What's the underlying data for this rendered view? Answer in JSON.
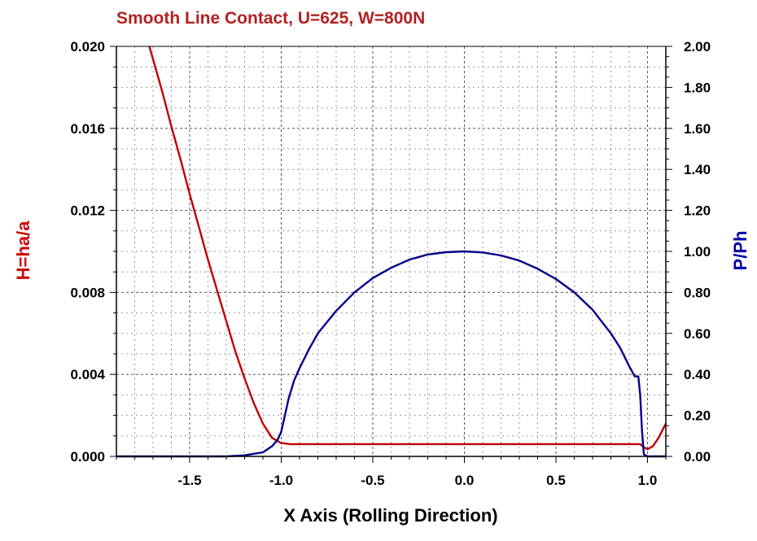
{
  "chart_data": {
    "type": "line",
    "title": "Smooth Line Contact, U=625, W=800N",
    "xlabel": "X Axis (Rolling Direction)",
    "ylabel_left": "H=ha/a",
    "ylabel_right": "P/Ph",
    "xlim": [
      -1.9,
      1.1
    ],
    "ylim_left": [
      0.0,
      0.02
    ],
    "ylim_right": [
      0.0,
      2.0
    ],
    "x_ticks": [
      "-1.5",
      "-1.0",
      "-0.5",
      "0.0",
      "0.5",
      "1.0"
    ],
    "x_tick_values": [
      -1.5,
      -1.0,
      -0.5,
      0.0,
      0.5,
      1.0
    ],
    "y_left_ticks": [
      "0.000",
      "0.004",
      "0.008",
      "0.012",
      "0.016",
      "0.020"
    ],
    "y_left_tick_values": [
      0.0,
      0.004,
      0.008,
      0.012,
      0.016,
      0.02
    ],
    "y_right_ticks": [
      "0.00",
      "0.20",
      "0.40",
      "0.60",
      "0.80",
      "1.00",
      "1.20",
      "1.40",
      "1.60",
      "1.80",
      "2.00"
    ],
    "y_right_tick_values": [
      0.0,
      0.2,
      0.4,
      0.6,
      0.8,
      1.0,
      1.2,
      1.4,
      1.6,
      1.8,
      2.0
    ],
    "grid": true,
    "colors": {
      "film": "#c00000",
      "pressure": "#00008b",
      "title": "#b22222",
      "left_label": "#cc0000",
      "right_label": "#0000aa"
    },
    "series": [
      {
        "axis": "left",
        "color": "#c00000",
        "x": [
          -1.72,
          -1.65,
          -1.6,
          -1.55,
          -1.5,
          -1.45,
          -1.4,
          -1.35,
          -1.3,
          -1.25,
          -1.2,
          -1.15,
          -1.1,
          -1.05,
          -1.0,
          -0.95,
          -0.9,
          -0.5,
          0.0,
          0.5,
          0.9,
          0.96,
          0.98,
          1.0,
          1.03,
          1.06,
          1.1
        ],
        "y": [
          0.02,
          0.0178,
          0.0161,
          0.0145,
          0.0128,
          0.0112,
          0.0096,
          0.0081,
          0.0066,
          0.0051,
          0.0038,
          0.0026,
          0.0016,
          0.0009,
          0.00065,
          0.0006,
          0.0006,
          0.0006,
          0.0006,
          0.0006,
          0.0006,
          0.0006,
          0.00045,
          0.00035,
          0.0005,
          0.0009,
          0.0016
        ]
      },
      {
        "axis": "right",
        "color": "#00008b",
        "x": [
          -1.9,
          -1.3,
          -1.2,
          -1.1,
          -1.05,
          -1.02,
          -1.0,
          -0.98,
          -0.96,
          -0.93,
          -0.9,
          -0.85,
          -0.8,
          -0.7,
          -0.6,
          -0.5,
          -0.4,
          -0.3,
          -0.2,
          -0.1,
          0.0,
          0.1,
          0.2,
          0.3,
          0.4,
          0.5,
          0.6,
          0.7,
          0.8,
          0.85,
          0.9,
          0.93,
          0.95,
          0.96,
          0.97,
          0.98,
          1.0,
          1.1
        ],
        "y": [
          0.0,
          0.0,
          0.005,
          0.02,
          0.05,
          0.08,
          0.12,
          0.2,
          0.28,
          0.37,
          0.43,
          0.52,
          0.6,
          0.71,
          0.8,
          0.87,
          0.92,
          0.96,
          0.985,
          0.996,
          1.0,
          0.995,
          0.98,
          0.955,
          0.915,
          0.865,
          0.8,
          0.715,
          0.6,
          0.53,
          0.44,
          0.39,
          0.39,
          0.3,
          0.12,
          0.01,
          0.0,
          0.0
        ]
      }
    ]
  }
}
